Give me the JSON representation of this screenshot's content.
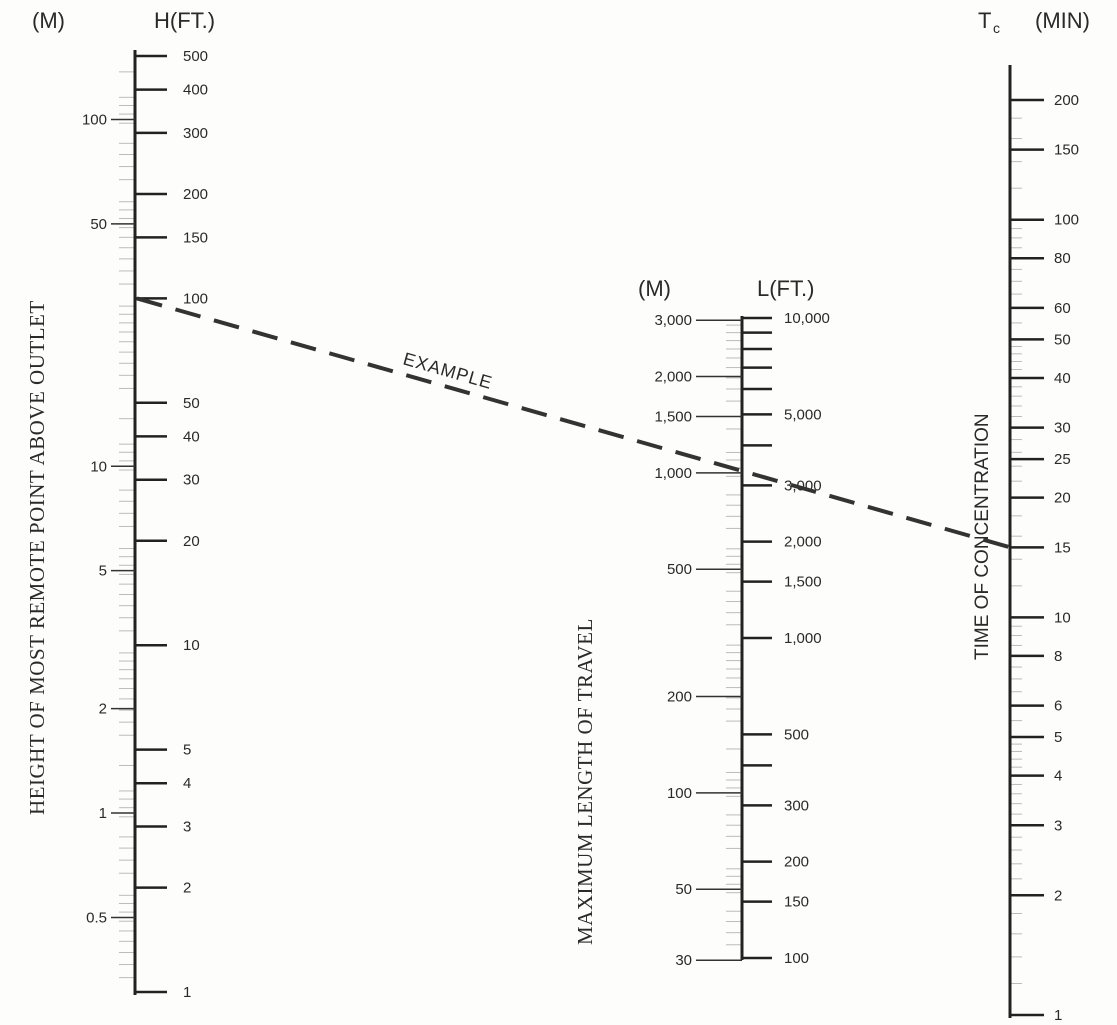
{
  "chart_data": {
    "type": "nomograph",
    "headers": {
      "h_metric": "(M)",
      "h_feet": "H(FT.)",
      "l_metric": "(M)",
      "l_feet": "L(FT.)",
      "tc_symbol": "T",
      "tc_subscript": "c",
      "tc_unit": "(MIN)"
    },
    "axis_titles": {
      "h": "HEIGHT OF MOST REMOTE POINT ABOVE OUTLET",
      "l": "MAXIMUM LENGTH OF TRAVEL",
      "tc": "TIME OF CONCENTRATION"
    },
    "scales": {
      "h_feet": {
        "range": [
          1,
          500
        ],
        "log": true,
        "ticks": [
          {
            "value": 500,
            "label": "500"
          },
          {
            "value": 400,
            "label": "400"
          },
          {
            "value": 300,
            "label": "300"
          },
          {
            "value": 200,
            "label": "200"
          },
          {
            "value": 150,
            "label": "150"
          },
          {
            "value": 100,
            "label": "100"
          },
          {
            "value": 50,
            "label": "50"
          },
          {
            "value": 40,
            "label": "40"
          },
          {
            "value": 30,
            "label": "30"
          },
          {
            "value": 20,
            "label": "20"
          },
          {
            "value": 10,
            "label": "10"
          },
          {
            "value": 5,
            "label": "5"
          },
          {
            "value": 4,
            "label": "4"
          },
          {
            "value": 3,
            "label": "3"
          },
          {
            "value": 2,
            "label": "2"
          },
          {
            "value": 1,
            "label": "1"
          }
        ]
      },
      "h_metric": {
        "log": true,
        "ticks": [
          {
            "value": 100,
            "label": "100"
          },
          {
            "value": 50,
            "label": "50"
          },
          {
            "value": 10,
            "label": "10"
          },
          {
            "value": 5,
            "label": "5"
          },
          {
            "value": 2,
            "label": "2"
          },
          {
            "value": 1,
            "label": "1"
          },
          {
            "value": 0.5,
            "label": "0.5"
          }
        ]
      },
      "l_feet": {
        "range": [
          100,
          10000
        ],
        "log": true,
        "ticks": [
          {
            "value": 10000,
            "label": "10,000"
          },
          {
            "value": 5000,
            "label": "5,000"
          },
          {
            "value": 3000,
            "label": "3,000"
          },
          {
            "value": 2000,
            "label": "2,000"
          },
          {
            "value": 1500,
            "label": "1,500"
          },
          {
            "value": 1000,
            "label": "1,000"
          },
          {
            "value": 500,
            "label": "500"
          },
          {
            "value": 300,
            "label": "300"
          },
          {
            "value": 200,
            "label": "200"
          },
          {
            "value": 150,
            "label": "150"
          },
          {
            "value": 100,
            "label": "100"
          }
        ],
        "unlabeled_ticks": [
          9000,
          8000,
          7000,
          6000,
          4000,
          400
        ]
      },
      "l_metric": {
        "log": true,
        "ticks": [
          {
            "value": 3000,
            "label": "3,000"
          },
          {
            "value": 2000,
            "label": "2,000"
          },
          {
            "value": 1500,
            "label": "1,500"
          },
          {
            "value": 1000,
            "label": "1,000"
          },
          {
            "value": 500,
            "label": "500"
          },
          {
            "value": 200,
            "label": "200"
          },
          {
            "value": 100,
            "label": "100"
          },
          {
            "value": 50,
            "label": "50"
          },
          {
            "value": 30,
            "label": "30"
          }
        ]
      },
      "tc_min": {
        "range": [
          1,
          200
        ],
        "log": true,
        "ticks": [
          {
            "value": 200,
            "label": "200"
          },
          {
            "value": 150,
            "label": "150"
          },
          {
            "value": 100,
            "label": "100"
          },
          {
            "value": 80,
            "label": "80"
          },
          {
            "value": 60,
            "label": "60"
          },
          {
            "value": 50,
            "label": "50"
          },
          {
            "value": 40,
            "label": "40"
          },
          {
            "value": 30,
            "label": "30"
          },
          {
            "value": 25,
            "label": "25"
          },
          {
            "value": 20,
            "label": "20"
          },
          {
            "value": 15,
            "label": "15"
          },
          {
            "value": 10,
            "label": "10"
          },
          {
            "value": 8,
            "label": "8"
          },
          {
            "value": 6,
            "label": "6"
          },
          {
            "value": 5,
            "label": "5"
          },
          {
            "value": 4,
            "label": "4"
          },
          {
            "value": 3,
            "label": "3"
          },
          {
            "value": 2,
            "label": "2"
          },
          {
            "value": 1,
            "label": "1"
          }
        ]
      }
    },
    "example": {
      "label": "EXAMPLE",
      "h_ft": 100,
      "l_ft": 3000,
      "tc_min": 15
    }
  }
}
